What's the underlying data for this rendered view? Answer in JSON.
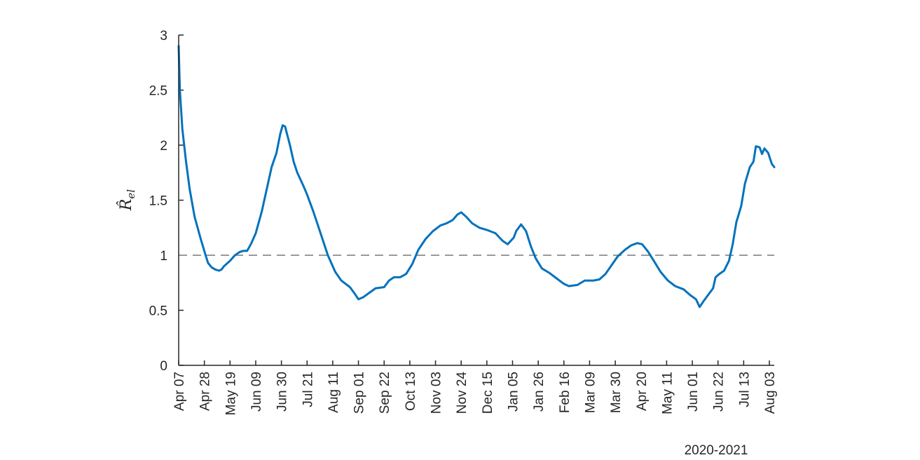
{
  "chart_data": {
    "type": "line",
    "title": "",
    "xlabel": "",
    "ylabel": "R̂el",
    "ylabel_parts": {
      "symbol": "R̂",
      "subscript": "el"
    },
    "footer_label": "2020-2021",
    "ylim": [
      0,
      3
    ],
    "yticks": [
      0,
      0.5,
      1,
      1.5,
      2,
      2.5,
      3
    ],
    "ytick_labels": [
      "0",
      "0.5",
      "1",
      "1.5",
      "2",
      "2.5",
      "3"
    ],
    "xlim": [
      "2020-04-07",
      "2021-08-07"
    ],
    "xticks": [
      {
        "date": "2020-04-07",
        "label": "Apr 07"
      },
      {
        "date": "2020-04-28",
        "label": "Apr 28"
      },
      {
        "date": "2020-05-19",
        "label": "May 19"
      },
      {
        "date": "2020-06-09",
        "label": "Jun 09"
      },
      {
        "date": "2020-06-30",
        "label": "Jun 30"
      },
      {
        "date": "2020-07-21",
        "label": "Jul 21"
      },
      {
        "date": "2020-08-11",
        "label": "Aug 11"
      },
      {
        "date": "2020-09-01",
        "label": "Sep 01"
      },
      {
        "date": "2020-09-22",
        "label": "Sep 22"
      },
      {
        "date": "2020-10-13",
        "label": "Oct 13"
      },
      {
        "date": "2020-11-03",
        "label": "Nov 03"
      },
      {
        "date": "2020-11-24",
        "label": "Nov 24"
      },
      {
        "date": "2020-12-15",
        "label": "Dec 15"
      },
      {
        "date": "2021-01-05",
        "label": "Jan 05"
      },
      {
        "date": "2021-01-26",
        "label": "Jan 26"
      },
      {
        "date": "2021-02-16",
        "label": "Feb 16"
      },
      {
        "date": "2021-03-09",
        "label": "Mar 09"
      },
      {
        "date": "2021-03-30",
        "label": "Mar 30"
      },
      {
        "date": "2021-04-20",
        "label": "Apr 20"
      },
      {
        "date": "2021-05-11",
        "label": "May 11"
      },
      {
        "date": "2021-06-01",
        "label": "Jun 01"
      },
      {
        "date": "2021-06-22",
        "label": "Jun 22"
      },
      {
        "date": "2021-07-13",
        "label": "Jul 13"
      },
      {
        "date": "2021-08-03",
        "label": "Aug 03"
      }
    ],
    "reference_line": {
      "y": 1,
      "style": "dashed",
      "color": "#999999"
    },
    "grid": false,
    "series": [
      {
        "color": "#0072BD",
        "points": [
          [
            "2020-04-07",
            2.9
          ],
          [
            "2020-04-08",
            2.5
          ],
          [
            "2020-04-10",
            2.15
          ],
          [
            "2020-04-13",
            1.85
          ],
          [
            "2020-04-16",
            1.6
          ],
          [
            "2020-04-20",
            1.35
          ],
          [
            "2020-04-25",
            1.15
          ],
          [
            "2020-04-29",
            1.0
          ],
          [
            "2020-05-01",
            0.93
          ],
          [
            "2020-05-04",
            0.89
          ],
          [
            "2020-05-07",
            0.87
          ],
          [
            "2020-05-10",
            0.86
          ],
          [
            "2020-05-12",
            0.87
          ],
          [
            "2020-05-14",
            0.9
          ],
          [
            "2020-05-19",
            0.95
          ],
          [
            "2020-05-23",
            1.0
          ],
          [
            "2020-05-27",
            1.03
          ],
          [
            "2020-05-30",
            1.04
          ],
          [
            "2020-06-02",
            1.04
          ],
          [
            "2020-06-05",
            1.1
          ],
          [
            "2020-06-09",
            1.2
          ],
          [
            "2020-06-14",
            1.4
          ],
          [
            "2020-06-19",
            1.65
          ],
          [
            "2020-06-22",
            1.8
          ],
          [
            "2020-06-26",
            1.93
          ],
          [
            "2020-06-29",
            2.1
          ],
          [
            "2020-07-01",
            2.18
          ],
          [
            "2020-07-03",
            2.17
          ],
          [
            "2020-07-07",
            2.0
          ],
          [
            "2020-07-10",
            1.85
          ],
          [
            "2020-07-13",
            1.75
          ],
          [
            "2020-07-18",
            1.63
          ],
          [
            "2020-07-21",
            1.55
          ],
          [
            "2020-07-26",
            1.4
          ],
          [
            "2020-08-01",
            1.2
          ],
          [
            "2020-08-07",
            1.0
          ],
          [
            "2020-08-13",
            0.85
          ],
          [
            "2020-08-18",
            0.77
          ],
          [
            "2020-08-25",
            0.71
          ],
          [
            "2020-08-29",
            0.65
          ],
          [
            "2020-09-01",
            0.6
          ],
          [
            "2020-09-05",
            0.62
          ],
          [
            "2020-09-10",
            0.66
          ],
          [
            "2020-09-15",
            0.7
          ],
          [
            "2020-09-22",
            0.71
          ],
          [
            "2020-09-26",
            0.77
          ],
          [
            "2020-09-30",
            0.8
          ],
          [
            "2020-10-05",
            0.8
          ],
          [
            "2020-10-10",
            0.83
          ],
          [
            "2020-10-15",
            0.92
          ],
          [
            "2020-10-20",
            1.05
          ],
          [
            "2020-10-26",
            1.15
          ],
          [
            "2020-11-01",
            1.22
          ],
          [
            "2020-11-07",
            1.27
          ],
          [
            "2020-11-12",
            1.29
          ],
          [
            "2020-11-17",
            1.32
          ],
          [
            "2020-11-21",
            1.37
          ],
          [
            "2020-11-24",
            1.39
          ],
          [
            "2020-11-28",
            1.35
          ],
          [
            "2020-12-03",
            1.29
          ],
          [
            "2020-12-09",
            1.25
          ],
          [
            "2020-12-15",
            1.23
          ],
          [
            "2020-12-22",
            1.2
          ],
          [
            "2020-12-28",
            1.13
          ],
          [
            "2021-01-01",
            1.1
          ],
          [
            "2021-01-06",
            1.16
          ],
          [
            "2021-01-08",
            1.22
          ],
          [
            "2021-01-12",
            1.28
          ],
          [
            "2021-01-16",
            1.22
          ],
          [
            "2021-01-20",
            1.08
          ],
          [
            "2021-01-24",
            0.97
          ],
          [
            "2021-01-29",
            0.88
          ],
          [
            "2021-02-04",
            0.84
          ],
          [
            "2021-02-10",
            0.79
          ],
          [
            "2021-02-16",
            0.74
          ],
          [
            "2021-02-20",
            0.72
          ],
          [
            "2021-02-27",
            0.73
          ],
          [
            "2021-03-05",
            0.77
          ],
          [
            "2021-03-12",
            0.77
          ],
          [
            "2021-03-17",
            0.78
          ],
          [
            "2021-03-22",
            0.83
          ],
          [
            "2021-03-27",
            0.91
          ],
          [
            "2021-04-01",
            0.99
          ],
          [
            "2021-04-07",
            1.05
          ],
          [
            "2021-04-12",
            1.09
          ],
          [
            "2021-04-17",
            1.11
          ],
          [
            "2021-04-21",
            1.1
          ],
          [
            "2021-04-26",
            1.03
          ],
          [
            "2021-05-01",
            0.94
          ],
          [
            "2021-05-06",
            0.85
          ],
          [
            "2021-05-12",
            0.77
          ],
          [
            "2021-05-18",
            0.72
          ],
          [
            "2021-05-25",
            0.69
          ],
          [
            "2021-05-30",
            0.64
          ],
          [
            "2021-06-04",
            0.6
          ],
          [
            "2021-06-07",
            0.53
          ],
          [
            "2021-06-10",
            0.58
          ],
          [
            "2021-06-14",
            0.64
          ],
          [
            "2021-06-18",
            0.7
          ],
          [
            "2021-06-20",
            0.8
          ],
          [
            "2021-06-23",
            0.83
          ],
          [
            "2021-06-27",
            0.86
          ],
          [
            "2021-07-01",
            0.95
          ],
          [
            "2021-07-04",
            1.1
          ],
          [
            "2021-07-07",
            1.3
          ],
          [
            "2021-07-11",
            1.45
          ],
          [
            "2021-07-14",
            1.65
          ],
          [
            "2021-07-18",
            1.8
          ],
          [
            "2021-07-21",
            1.85
          ],
          [
            "2021-07-23",
            1.99
          ],
          [
            "2021-07-26",
            1.98
          ],
          [
            "2021-07-28",
            1.92
          ],
          [
            "2021-07-30",
            1.97
          ],
          [
            "2021-08-02",
            1.93
          ],
          [
            "2021-08-05",
            1.83
          ],
          [
            "2021-08-07",
            1.8
          ]
        ]
      }
    ]
  }
}
